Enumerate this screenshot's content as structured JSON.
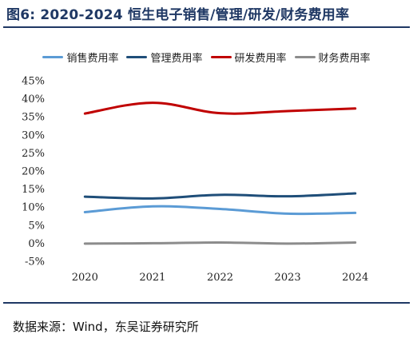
{
  "header": {
    "title": "图6: 2020-2024 恒生电子销售/管理/研发/财务费用率"
  },
  "footer": {
    "source": "数据来源：Wind，东吴证券研究所"
  },
  "chart_data": {
    "type": "line",
    "title": "",
    "xlabel": "",
    "ylabel": "",
    "categories": [
      "2020",
      "2021",
      "2022",
      "2023",
      "2024"
    ],
    "y_ticks": [
      "45%",
      "40%",
      "35%",
      "30%",
      "25%",
      "20%",
      "15%",
      "10%",
      "5%",
      "0%",
      "-5%"
    ],
    "ylim": [
      -5,
      45
    ],
    "grid": false,
    "legend_position": "top",
    "series": [
      {
        "name": "销售费用率",
        "color": "#5b9bd5",
        "values": [
          8.6,
          10.2,
          9.5,
          8.2,
          8.4
        ]
      },
      {
        "name": "管理费用率",
        "color": "#1f4e79",
        "values": [
          12.9,
          12.4,
          13.4,
          13.0,
          13.8
        ]
      },
      {
        "name": "研发费用率",
        "color": "#c00000",
        "values": [
          35.9,
          38.9,
          36.0,
          36.6,
          37.3
        ]
      },
      {
        "name": "财务费用率",
        "color": "#8c8c8c",
        "values": [
          -0.1,
          0.0,
          0.2,
          -0.1,
          0.2
        ]
      }
    ]
  }
}
